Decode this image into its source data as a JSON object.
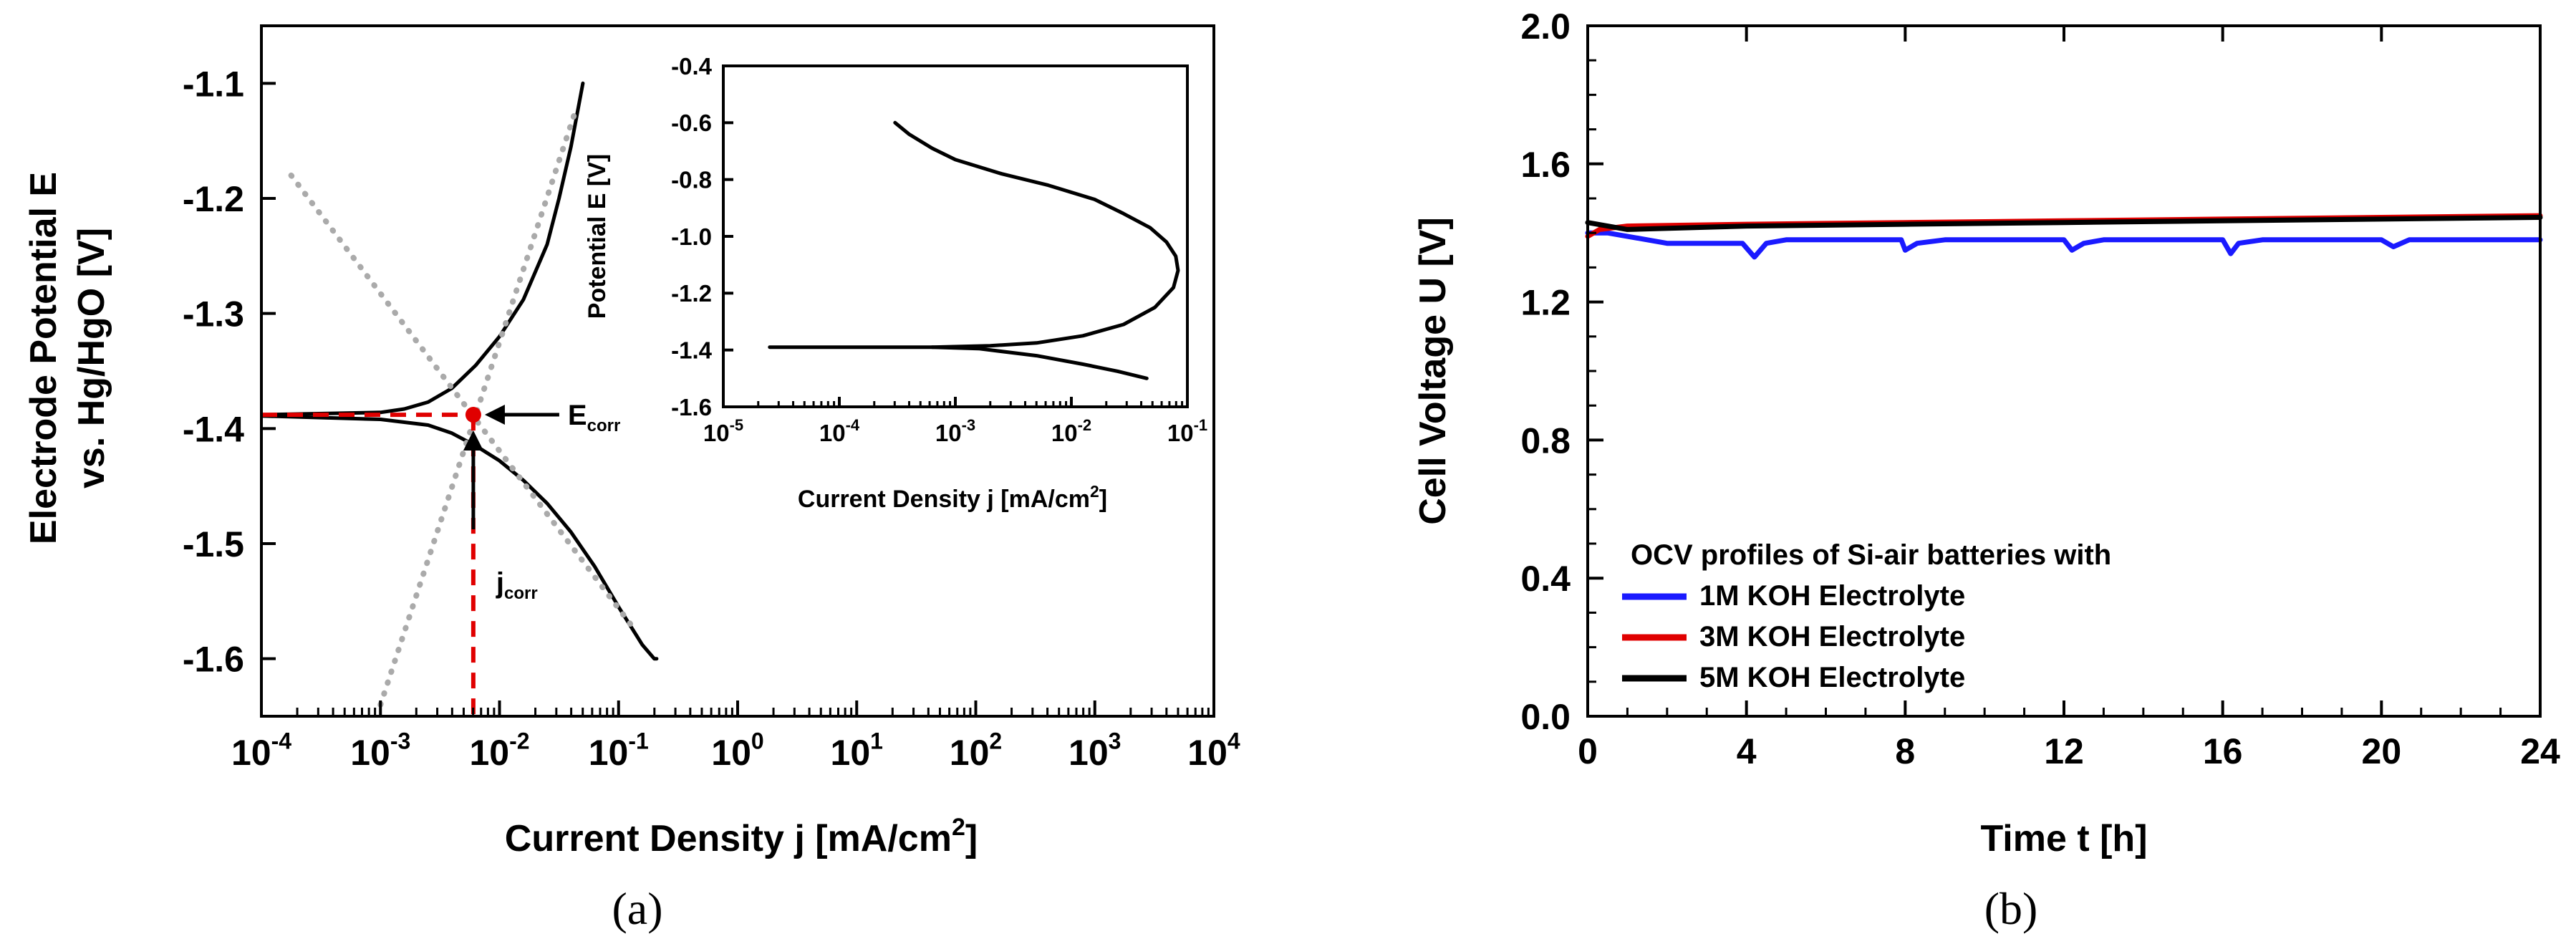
{
  "chart_data": [
    {
      "id": "a",
      "type": "line",
      "caption": "(a)",
      "xlabel": "Current Density j [mA/cm",
      "xlabel_sup": "2",
      "xlabel_end": "]",
      "ylabel_line1": "Electrode Potential E",
      "ylabel_line2": "vs. Hg/HgO [V]",
      "x_scale": "log",
      "xlim_exp": [
        -4,
        4
      ],
      "x_ticks_exp": [
        -4,
        -3,
        -2,
        -1,
        0,
        1,
        2,
        3,
        4
      ],
      "x_tick_base": "10",
      "x_tick_exps": [
        "-4",
        "-3",
        "-2",
        "-1",
        "0",
        "1",
        "2",
        "3",
        "4"
      ],
      "ylim": [
        -1.65,
        -1.05
      ],
      "y_ticks": [
        -1.6,
        -1.5,
        -1.4,
        -1.3,
        -1.2,
        -1.1
      ],
      "y_tick_labels": [
        "-1.6",
        "-1.5",
        "-1.4",
        "-1.3",
        "-1.2",
        "-1.1"
      ],
      "series": [
        {
          "name": "anodic branch",
          "color": "#000000",
          "style": "solid",
          "x_exp": [
            -4,
            -3,
            -2.8,
            -2.6,
            -2.4,
            -2.2,
            -2.0,
            -1.8,
            -1.6,
            -1.5,
            -1.4,
            -1.3
          ],
          "values": [
            -1.388,
            -1.386,
            -1.383,
            -1.377,
            -1.365,
            -1.345,
            -1.32,
            -1.288,
            -1.24,
            -1.2,
            -1.155,
            -1.1
          ]
        },
        {
          "name": "cathodic branch",
          "color": "#000000",
          "style": "solid",
          "x_exp": [
            -4,
            -3,
            -2.6,
            -2.4,
            -2.2,
            -2.0,
            -1.8,
            -1.6,
            -1.4,
            -1.2,
            -1.0,
            -0.8,
            -0.7,
            -0.68
          ],
          "values": [
            -1.389,
            -1.392,
            -1.397,
            -1.404,
            -1.415,
            -1.428,
            -1.445,
            -1.465,
            -1.49,
            -1.52,
            -1.555,
            -1.588,
            -1.6,
            -1.6
          ]
        },
        {
          "name": "anodic Tafel line",
          "color": "#aaaaaa",
          "style": "dotted",
          "x_exp": [
            -3.0,
            -1.35
          ],
          "values": [
            -1.64,
            -1.12
          ]
        },
        {
          "name": "cathodic Tafel line",
          "color": "#aaaaaa",
          "style": "dotted",
          "x_exp": [
            -3.75,
            -0.9
          ],
          "values": [
            -1.18,
            -1.57
          ]
        },
        {
          "name": "Ecorr level",
          "color": "#e00000",
          "style": "dashed",
          "x_exp": [
            -4,
            -2.22
          ],
          "values": [
            -1.388,
            -1.388
          ]
        },
        {
          "name": "jcorr level",
          "color": "#e00000",
          "style": "dashed",
          "x_exp": [
            -2.22,
            -2.22
          ],
          "values": [
            -1.388,
            -1.65
          ]
        }
      ],
      "points": [
        {
          "name": "corrosion point",
          "x_exp": -2.22,
          "value": -1.388,
          "color": "#e00000"
        }
      ],
      "annotations": [
        {
          "id": "ecorr",
          "text": "E",
          "sub": "corr",
          "points_to": "corrosion point",
          "arrow_from": "right"
        },
        {
          "id": "jcorr",
          "text": "j",
          "sub": "corr",
          "points_to": "corrosion point",
          "arrow_from": "below"
        }
      ],
      "inset": {
        "type": "line",
        "xlabel": "Current Density j [mA/cm",
        "xlabel_sup": "2",
        "xlabel_end": "]",
        "ylabel": "Potential E [V]",
        "x_scale": "log",
        "xlim_exp": [
          -5,
          -1
        ],
        "x_ticks_exp": [
          -5,
          -4,
          -3,
          -2,
          -1
        ],
        "x_tick_base": "10",
        "x_tick_exps": [
          "-5",
          "-4",
          "-3",
          "-2",
          "-1"
        ],
        "ylim": [
          -1.6,
          -0.4
        ],
        "y_ticks": [
          -1.6,
          -1.4,
          -1.2,
          -1.0,
          -0.8,
          -0.6,
          -0.4
        ],
        "y_tick_labels": [
          "-1.6",
          "-1.4",
          "-1.2",
          "-1.0",
          "-0.8",
          "-0.6",
          "-0.4"
        ],
        "series": [
          {
            "name": "polarization curve",
            "color": "#000000",
            "x_exp": [
              -3.52,
              -3.4,
              -3.2,
              -3.0,
              -2.6,
              -2.2,
              -1.8,
              -1.55,
              -1.32,
              -1.18,
              -1.1,
              -1.08,
              -1.12,
              -1.28,
              -1.55,
              -1.9,
              -2.3,
              -2.7,
              -3.2,
              -4.0,
              -4.6
            ],
            "values": [
              -0.6,
              -0.64,
              -0.69,
              -0.73,
              -0.78,
              -0.82,
              -0.87,
              -0.92,
              -0.97,
              -1.02,
              -1.07,
              -1.12,
              -1.18,
              -1.25,
              -1.31,
              -1.35,
              -1.375,
              -1.385,
              -1.39,
              -1.39,
              -1.39
            ]
          },
          {
            "name": "cathodic tail",
            "color": "#000000",
            "x_exp": [
              -3.2,
              -2.8,
              -2.3,
              -1.9,
              -1.6,
              -1.35
            ],
            "values": [
              -1.39,
              -1.395,
              -1.42,
              -1.45,
              -1.475,
              -1.5
            ]
          }
        ]
      }
    },
    {
      "id": "b",
      "type": "line",
      "caption": "(b)",
      "xlabel": "Time t [h]",
      "ylabel": "Cell Voltage U [V]",
      "xlim": [
        0,
        24
      ],
      "x_ticks": [
        0,
        4,
        8,
        12,
        16,
        20,
        24
      ],
      "x_tick_labels": [
        "0",
        "4",
        "8",
        "12",
        "16",
        "20",
        "24"
      ],
      "ylim": [
        0.0,
        2.0
      ],
      "y_ticks": [
        0.0,
        0.4,
        0.8,
        1.2,
        1.6,
        2.0
      ],
      "y_tick_labels": [
        "0.0",
        "0.4",
        "0.8",
        "1.2",
        "1.6",
        "2.0"
      ],
      "legend_title": "OCV profiles of Si-air batteries with",
      "legend_position": "bottom-left",
      "series": [
        {
          "name": "1M KOH Electrolyte",
          "color": "#1a1aff",
          "x": [
            0,
            0.5,
            1.5,
            2,
            3.9,
            4.2,
            4.5,
            5,
            7.9,
            8.0,
            8.3,
            9,
            12.0,
            12.2,
            12.5,
            13,
            16.0,
            16.2,
            16.4,
            17,
            20.0,
            20.3,
            20.7,
            22,
            24
          ],
          "values": [
            1.4,
            1.4,
            1.38,
            1.37,
            1.37,
            1.33,
            1.37,
            1.38,
            1.38,
            1.35,
            1.37,
            1.38,
            1.38,
            1.35,
            1.37,
            1.38,
            1.38,
            1.34,
            1.37,
            1.38,
            1.38,
            1.36,
            1.38,
            1.38,
            1.38
          ]
        },
        {
          "name": "3M KOH Electrolyte",
          "color": "#e00000",
          "x": [
            0,
            0.3,
            1,
            4,
            8,
            12,
            16,
            20,
            24
          ],
          "values": [
            1.39,
            1.41,
            1.42,
            1.425,
            1.43,
            1.435,
            1.44,
            1.445,
            1.45
          ]
        },
        {
          "name": "5M KOH Electrolyte",
          "color": "#000000",
          "x": [
            0,
            0.5,
            1,
            4,
            8,
            12,
            16,
            20,
            24
          ],
          "values": [
            1.43,
            1.42,
            1.41,
            1.42,
            1.425,
            1.43,
            1.435,
            1.44,
            1.445
          ]
        }
      ]
    }
  ]
}
